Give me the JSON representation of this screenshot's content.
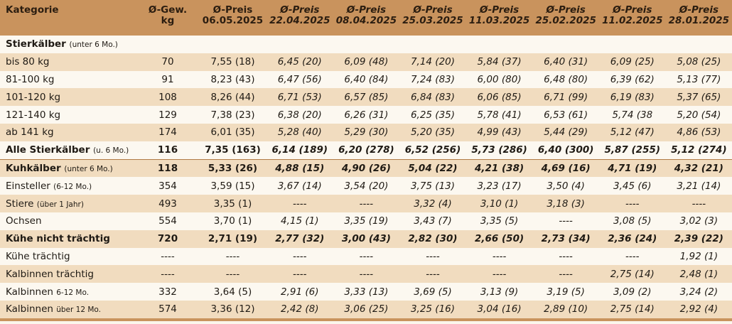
{
  "header": {
    "kategorie": "Kategorie",
    "gewicht_line1": "Ø-Gew.",
    "gewicht_line2": "kg",
    "columns": [
      {
        "line1": "Ø-Preis",
        "line2": "06.05.2025"
      },
      {
        "line1": "Ø-Preis",
        "line2": "22.04.2025"
      },
      {
        "line1": "Ø-Preis",
        "line2": "08.04.2025"
      },
      {
        "line1": "Ø-Preis",
        "line2": "25.03.2025"
      },
      {
        "line1": "Ø-Preis",
        "line2": "11.03.2025"
      },
      {
        "line1": "Ø-Preis",
        "line2": "25.02.2025"
      },
      {
        "line1": "Ø-Preis",
        "line2": "11.02.2025"
      },
      {
        "line1": "Ø-Preis",
        "line2": "28.01.2025"
      }
    ]
  },
  "section": {
    "label": "Stierkälber",
    "sub": "(unter 6 Mo.)"
  },
  "rows": [
    {
      "label": "bis 80 kg",
      "sub": "",
      "kg": "70",
      "values": [
        "7,55 (18)",
        "6,45 (20)",
        "6,09 (48)",
        "7,14 (20)",
        "5,84 (37)",
        "6,40 (31)",
        "6,09 (25)",
        "5,08 (25)"
      ]
    },
    {
      "label": "81-100 kg",
      "sub": "",
      "kg": "91",
      "values": [
        "8,23 (43)",
        "6,47 (56)",
        "6,40 (84)",
        "7,24 (83)",
        "6,00 (80)",
        "6,48 (80)",
        "6,39 (62)",
        "5,13 (77)"
      ]
    },
    {
      "label": "101-120 kg",
      "sub": "",
      "kg": "108",
      "values": [
        "8,26 (44)",
        "6,71 (53)",
        "6,57 (85)",
        "6,84 (83)",
        "6,06 (85)",
        "6,71 (99)",
        "6,19 (83)",
        "5,37 (65)"
      ]
    },
    {
      "label": "121-140 kg",
      "sub": "",
      "kg": "129",
      "values": [
        "7,38 (23)",
        "6,38 (20)",
        "6,26 (31)",
        "6,25 (35)",
        "5,78 (41)",
        "6,53 (61)",
        "5,74 (38",
        "5,20 (54)"
      ]
    },
    {
      "label": "ab 141 kg",
      "sub": "",
      "kg": "174",
      "values": [
        "6,01 (35)",
        "5,28 (40)",
        "5,29 (30)",
        "5,20 (35)",
        "4,99 (43)",
        "5,44 (29)",
        "5,12 (47)",
        "4,86 (53)"
      ]
    },
    {
      "label": "Alle Stierkälber",
      "sub": "(u. 6 Mo.)",
      "kg": "116",
      "values": [
        "7,35 (163)",
        "6,14 (189)",
        "6,20 (278)",
        "6,52 (256)",
        "5,73 (286)",
        "6,40 (300)",
        "5,87 (255)",
        "5,12 (274)"
      ]
    },
    {
      "label": "Kuhkälber",
      "sub": "(unter 6 Mo.)",
      "kg": "118",
      "values": [
        "5,33 (26)",
        "4,88 (15)",
        "4,90 (26)",
        "5,04 (22)",
        "4,21 (38)",
        "4,69 (16)",
        "4,71 (19)",
        "4,32 (21)"
      ]
    },
    {
      "label": "Einsteller",
      "sub": "(6-12 Mo.)",
      "kg": "354",
      "values": [
        "3,59 (15)",
        "3,67 (14)",
        "3,54 (20)",
        "3,75 (13)",
        "3,23 (17)",
        "3,50 (4)",
        "3,45 (6)",
        "3,21 (14)"
      ]
    },
    {
      "label": "Stiere",
      "sub": "(über 1 Jahr)",
      "kg": "493",
      "values": [
        "3,35 (1)",
        "----",
        "----",
        "3,32 (4)",
        "3,10 (1)",
        "3,18 (3)",
        "----",
        "----"
      ]
    },
    {
      "label": "Ochsen",
      "sub": "",
      "kg": "554",
      "values": [
        "3,70 (1)",
        "4,15 (1)",
        "3,35 (19)",
        "3,43 (7)",
        "3,35 (5)",
        "----",
        "3,08 (5)",
        "3,02 (3)"
      ]
    },
    {
      "label": "Kühe nicht trächtig",
      "sub": "",
      "kg": "720",
      "values": [
        "2,71 (19)",
        "2,77 (32)",
        "3,00 (43)",
        "2,82 (30)",
        "2,66 (50)",
        "2,73 (34)",
        "2,36 (24)",
        "2,39 (22)"
      ]
    },
    {
      "label": "Kühe trächtig",
      "sub": "",
      "kg": "----",
      "values": [
        "----",
        "----",
        "----",
        "----",
        "----",
        "----",
        "----",
        "1,92 (1)"
      ]
    },
    {
      "label": "Kalbinnen trächtig",
      "sub": "",
      "kg": "----",
      "values": [
        "----",
        "----",
        "----",
        "----",
        "----",
        "----",
        "2,75 (14)",
        "2,48 (1)"
      ]
    },
    {
      "label": "Kalbinnen",
      "sub": "6-12 Mo.",
      "kg": "332",
      "values": [
        "3,64 (5)",
        "2,91 (6)",
        "3,33 (13)",
        "3,69 (5)",
        "3,13 (9)",
        "3,19 (5)",
        "3,09 (2)",
        "3,24 (2)"
      ]
    },
    {
      "label": "Kalbinnen",
      "sub": "über 12 Mo.",
      "kg": "574",
      "values": [
        "3,36 (12)",
        "2,42 (8)",
        "3,06 (25)",
        "3,25 (16)",
        "3,04 (16)",
        "2,89 (10)",
        "2,75 (14)",
        "2,92 (4)"
      ]
    }
  ],
  "colors": {
    "header": "#c9935d",
    "shade": "#f1dcbf",
    "plain": "#fcf8f0",
    "rule": "#b07a45"
  }
}
